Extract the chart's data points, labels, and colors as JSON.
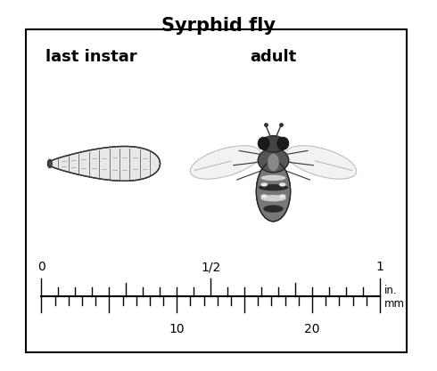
{
  "title": "Syrphid fly",
  "title_fontsize": 15,
  "title_fontweight": "bold",
  "label_last_instar": "last instar",
  "label_adult": "adult",
  "label_fontsize": 13,
  "label_fontweight": "bold",
  "bg_color": "#ffffff",
  "ruler_in_labels": [
    "0",
    "1/2",
    "1"
  ],
  "ruler_mm_labels": [
    "10",
    "20"
  ],
  "unit_in": "in.",
  "unit_mm": "mm",
  "fig_width": 4.9,
  "fig_height": 4.17,
  "dpi": 100
}
